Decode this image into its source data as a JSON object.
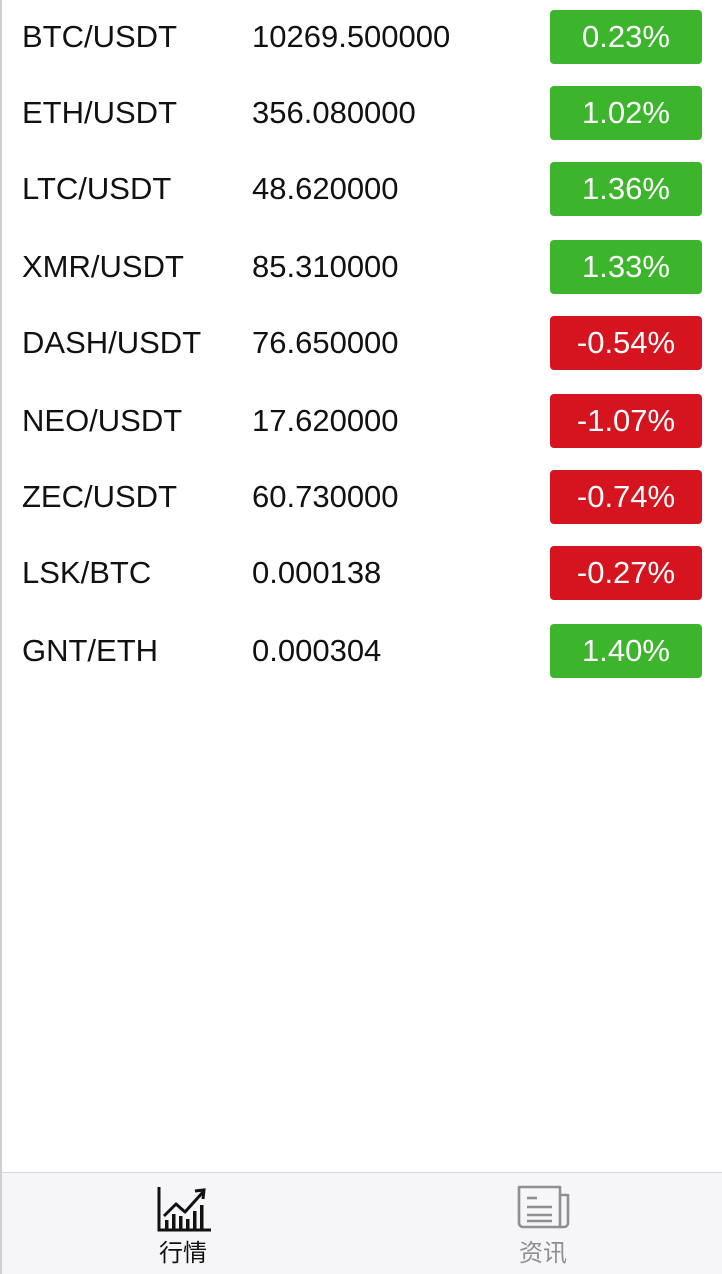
{
  "colors": {
    "up": "#3cb42c",
    "down": "#d6141f",
    "tab_active": "#111111",
    "tab_inactive": "#8e8e93"
  },
  "market": [
    {
      "pair": "BTC/USDT",
      "price": "10269.500000",
      "change": "0.23%",
      "direction": "up"
    },
    {
      "pair": "ETH/USDT",
      "price": "356.080000",
      "change": "1.02%",
      "direction": "up"
    },
    {
      "pair": "LTC/USDT",
      "price": "48.620000",
      "change": "1.36%",
      "direction": "up"
    },
    {
      "pair": "XMR/USDT",
      "price": "85.310000",
      "change": "1.33%",
      "direction": "up"
    },
    {
      "pair": "DASH/USDT",
      "price": "76.650000",
      "change": "-0.54%",
      "direction": "down"
    },
    {
      "pair": "NEO/USDT",
      "price": "17.620000",
      "change": "-1.07%",
      "direction": "down"
    },
    {
      "pair": "ZEC/USDT",
      "price": "60.730000",
      "change": "-0.74%",
      "direction": "down"
    },
    {
      "pair": "LSK/BTC",
      "price": "0.000138",
      "change": "-0.27%",
      "direction": "down"
    },
    {
      "pair": "GNT/ETH",
      "price": "0.000304",
      "change": "1.40%",
      "direction": "up"
    }
  ],
  "tabbar": {
    "tabs": [
      {
        "label": "行情",
        "icon": "chart-icon",
        "active": true
      },
      {
        "label": "资讯",
        "icon": "news-icon",
        "active": false
      }
    ]
  }
}
